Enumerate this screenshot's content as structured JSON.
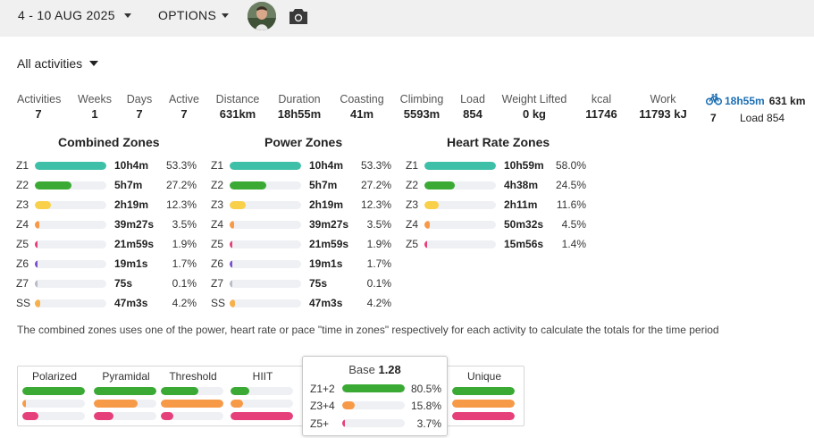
{
  "header": {
    "date_range": "4 - 10 AUG 2025",
    "options_label": "OPTIONS"
  },
  "icons": {
    "camera": "camera-icon",
    "bike": "bike-icon",
    "caret": "caret-down-icon"
  },
  "colors": {
    "z1": "#3dbfa8",
    "z2": "#3aaa35",
    "z3": "#f9d04a",
    "z4": "#f79a48",
    "z5": "#e6407a",
    "z6": "#7b52c9",
    "z7": "#b8bcc6",
    "ss": "#f6b04c",
    "track": "#eef0f4",
    "ride_blue": "#1c6fb3"
  },
  "filter": {
    "label": "All activities"
  },
  "stats": [
    {
      "label": "Activities",
      "value": "7"
    },
    {
      "label": "Weeks",
      "value": "1"
    },
    {
      "label": "Days",
      "value": "7"
    },
    {
      "label": "Active",
      "value": "7"
    },
    {
      "label": "Distance",
      "value": "631km"
    },
    {
      "label": "Duration",
      "value": "18h55m"
    },
    {
      "label": "Coasting",
      "value": "41m"
    },
    {
      "label": "Climbing",
      "value": "5593m"
    },
    {
      "label": "Load",
      "value": "854"
    },
    {
      "label": "Weight Lifted",
      "value": "0 kg"
    },
    {
      "label": "kcal",
      "value": "11746"
    },
    {
      "label": "Work",
      "value": "11793 kJ"
    }
  ],
  "ride_summary": {
    "duration": "18h55m",
    "distance": "631 km",
    "count": "7",
    "load": "Load 854"
  },
  "zones": {
    "combined": {
      "title": "Combined Zones",
      "rows": [
        {
          "zone": "Z1",
          "time": "10h4m",
          "pct": "53.3%",
          "frac": 1.0,
          "color": "#3dbfa8"
        },
        {
          "zone": "Z2",
          "time": "5h7m",
          "pct": "27.2%",
          "frac": 0.51,
          "color": "#3aaa35"
        },
        {
          "zone": "Z3",
          "time": "2h19m",
          "pct": "12.3%",
          "frac": 0.23,
          "color": "#f9d04a"
        },
        {
          "zone": "Z4",
          "time": "39m27s",
          "pct": "3.5%",
          "frac": 0.066,
          "color": "#f79a48"
        },
        {
          "zone": "Z5",
          "time": "21m59s",
          "pct": "1.9%",
          "frac": 0.036,
          "color": "#e6407a"
        },
        {
          "zone": "Z6",
          "time": "19m1s",
          "pct": "1.7%",
          "frac": 0.032,
          "color": "#7b52c9"
        },
        {
          "zone": "Z7",
          "time": "75s",
          "pct": "0.1%",
          "frac": 0.002,
          "color": "#b8bcc6"
        },
        {
          "zone": "SS",
          "time": "47m3s",
          "pct": "4.2%",
          "frac": 0.079,
          "color": "#f6b04c"
        }
      ]
    },
    "power": {
      "title": "Power Zones",
      "rows": [
        {
          "zone": "Z1",
          "time": "10h4m",
          "pct": "53.3%",
          "frac": 1.0,
          "color": "#3dbfa8"
        },
        {
          "zone": "Z2",
          "time": "5h7m",
          "pct": "27.2%",
          "frac": 0.51,
          "color": "#3aaa35"
        },
        {
          "zone": "Z3",
          "time": "2h19m",
          "pct": "12.3%",
          "frac": 0.23,
          "color": "#f9d04a"
        },
        {
          "zone": "Z4",
          "time": "39m27s",
          "pct": "3.5%",
          "frac": 0.066,
          "color": "#f79a48"
        },
        {
          "zone": "Z5",
          "time": "21m59s",
          "pct": "1.9%",
          "frac": 0.036,
          "color": "#e6407a"
        },
        {
          "zone": "Z6",
          "time": "19m1s",
          "pct": "1.7%",
          "frac": 0.032,
          "color": "#7b52c9"
        },
        {
          "zone": "Z7",
          "time": "75s",
          "pct": "0.1%",
          "frac": 0.002,
          "color": "#b8bcc6"
        },
        {
          "zone": "SS",
          "time": "47m3s",
          "pct": "4.2%",
          "frac": 0.079,
          "color": "#f6b04c"
        }
      ]
    },
    "heart_rate": {
      "title": "Heart Rate Zones",
      "rows": [
        {
          "zone": "Z1",
          "time": "10h59m",
          "pct": "58.0%",
          "frac": 1.0,
          "color": "#3dbfa8"
        },
        {
          "zone": "Z2",
          "time": "4h38m",
          "pct": "24.5%",
          "frac": 0.42,
          "color": "#3aaa35"
        },
        {
          "zone": "Z3",
          "time": "2h11m",
          "pct": "11.6%",
          "frac": 0.2,
          "color": "#f9d04a"
        },
        {
          "zone": "Z4",
          "time": "50m32s",
          "pct": "4.5%",
          "frac": 0.078,
          "color": "#f79a48"
        },
        {
          "zone": "Z5",
          "time": "15m56s",
          "pct": "1.4%",
          "frac": 0.024,
          "color": "#e6407a"
        }
      ]
    }
  },
  "note": "The combined zones uses one of the power, heart rate or pace \"time in zones\" respectively for each activity to calculate the totals for the time period",
  "distribution": {
    "columns": [
      {
        "name": "Polarized",
        "bars": [
          {
            "frac": 1.0,
            "color": "#3aaa35"
          },
          {
            "frac": 0.06,
            "color": "#f79a48"
          },
          {
            "frac": 0.25,
            "color": "#e6407a"
          }
        ]
      },
      {
        "name": "Pyramidal",
        "bars": [
          {
            "frac": 1.0,
            "color": "#3aaa35"
          },
          {
            "frac": 0.7,
            "color": "#f79a48"
          },
          {
            "frac": 0.32,
            "color": "#e6407a"
          }
        ]
      },
      {
        "name": "Threshold",
        "bars": [
          {
            "frac": 0.6,
            "color": "#3aaa35"
          },
          {
            "frac": 1.0,
            "color": "#f79a48"
          },
          {
            "frac": 0.2,
            "color": "#e6407a"
          }
        ]
      },
      {
        "name": "HIIT",
        "bars": [
          {
            "frac": 0.3,
            "color": "#3aaa35"
          },
          {
            "frac": 0.2,
            "color": "#f79a48"
          },
          {
            "frac": 1.0,
            "color": "#e6407a"
          }
        ]
      },
      {
        "name": "Unique",
        "bars": [
          {
            "frac": 1.0,
            "color": "#3aaa35"
          },
          {
            "frac": 1.0,
            "color": "#f79a48"
          },
          {
            "frac": 1.0,
            "color": "#e6407a"
          }
        ]
      }
    ]
  },
  "popup": {
    "title": "Base",
    "value": "1.28",
    "rows": [
      {
        "label": "Z1+2",
        "pct": "80.5%",
        "frac": 1.0,
        "color": "#3aaa35"
      },
      {
        "label": "Z3+4",
        "pct": "15.8%",
        "frac": 0.2,
        "color": "#f79a48"
      },
      {
        "label": "Z5+",
        "pct": "3.7%",
        "frac": 0.046,
        "color": "#e6407a"
      }
    ]
  }
}
